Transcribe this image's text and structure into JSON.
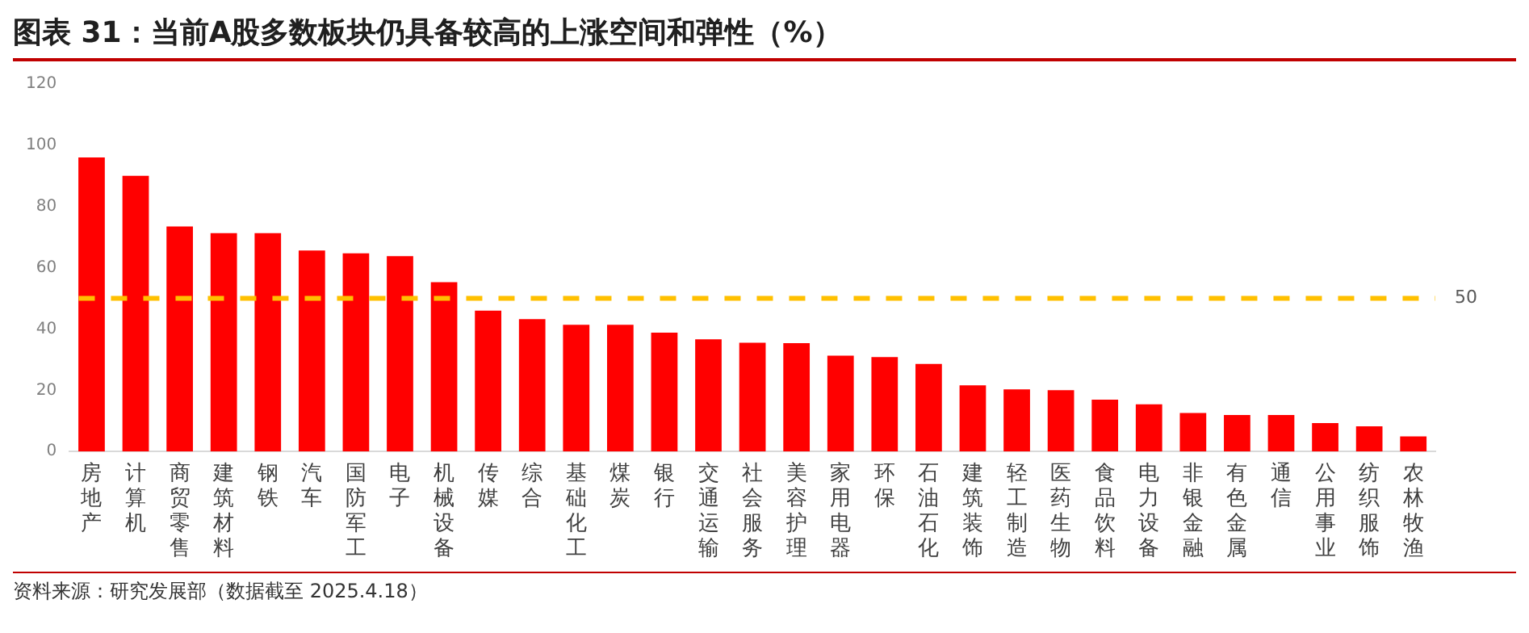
{
  "chart_data": {
    "type": "bar",
    "title": "图表 31：当前A股多数板块仍具备较高的上涨空间和弹性（%）",
    "categories": [
      "房地产",
      "计算机",
      "商贸零售",
      "建筑材料",
      "钢铁",
      "汽车",
      "国防军工",
      "电子",
      "机械设备",
      "传媒",
      "综合",
      "基础化工",
      "煤炭",
      "银行",
      "交通运输",
      "社会服务",
      "美容护理",
      "家用电器",
      "环保",
      "石油石化",
      "建筑装饰",
      "轻工制造",
      "医药生物",
      "食品饮料",
      "电力设备",
      "非银金融",
      "有色金属",
      "通信",
      "公用事业",
      "纺织服饰",
      "农林牧渔"
    ],
    "values": [
      96,
      90,
      73.5,
      71.3,
      71.3,
      65.6,
      64.7,
      63.8,
      55.3,
      46,
      43.2,
      41.4,
      41.4,
      38.8,
      36.6,
      35.5,
      35.4,
      31.3,
      30.8,
      28.6,
      21.6,
      20.3,
      20,
      16.9,
      15.4,
      12.6,
      11.9,
      11.9,
      9.3,
      8.2,
      4.9
    ],
    "color": "#ff0000",
    "ylim": [
      0,
      120
    ],
    "yticks": [
      0,
      20,
      40,
      60,
      80,
      100,
      120
    ],
    "grid": false,
    "legend": false,
    "ref_lines": [
      {
        "axis": "y",
        "value": 50,
        "label": "50",
        "color": "#ffc000",
        "line_style": "dashed"
      }
    ],
    "annotations": [
      "资料来源：研究发展部（数据截至 2025.4.18）"
    ]
  }
}
